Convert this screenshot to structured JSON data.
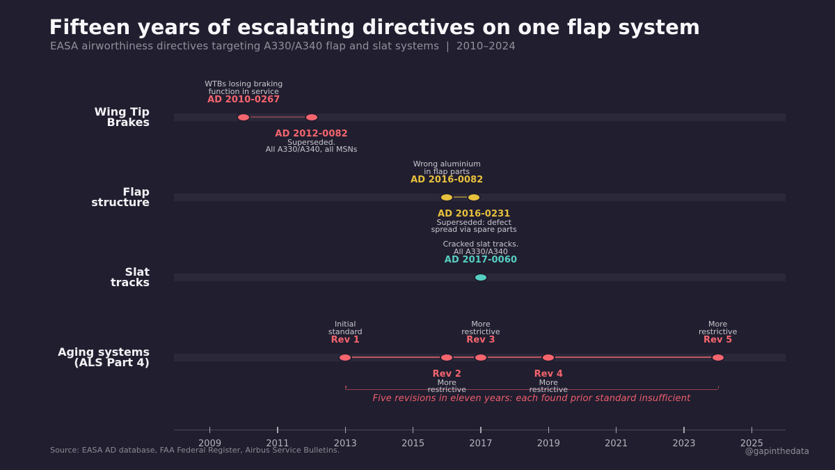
{
  "header": {
    "title": "Fifteen years of escalating directives on one flap system",
    "subtitle": "EASA airworthiness directives targeting A330/A340 flap and slat systems  |  2010–2024"
  },
  "footer": {
    "source": "Source: EASA AD database, FAA Federal Register, Airbus Service Bulletins.",
    "handle": "@gapinthedata"
  },
  "colors": {
    "background": "#211e2f",
    "lane_bar": "#2b2939",
    "salmon": "#f4656e",
    "gold": "#e7c13d",
    "teal": "#56cfc2",
    "note_gray": "#c9c7cf"
  },
  "chart_data": {
    "type": "scatter",
    "title": "Fifteen years of escalating directives on one flap system",
    "subtitle": "EASA airworthiness directives targeting A330/A340 flap and slat systems  |  2010–2024",
    "xlabel": "",
    "ylabel": "",
    "xlim": [
      2007.94,
      2026.0
    ],
    "xticks": [
      2009,
      2011,
      2013,
      2015,
      2017,
      2019,
      2021,
      2023,
      2025
    ],
    "grid": false,
    "legend": false,
    "lanes": [
      {
        "name": "Wing Tip Brakes",
        "label_lines": [
          "Wing Tip",
          "Brakes"
        ],
        "color": "#f4656e",
        "events": [
          {
            "year": 2010.0,
            "annotation": {
              "side": "above",
              "notes": [
                "WTBs losing braking",
                "function in service"
              ],
              "label": "AD 2010-0267"
            }
          },
          {
            "year": 2012.0,
            "annotation": {
              "side": "below",
              "label": "AD 2012-0082",
              "notes": [
                "Superseded.",
                "All A330/A340, all MSNs"
              ]
            }
          }
        ],
        "connect": [
          [
            2010.0,
            2012.0
          ]
        ],
        "connect_opacity": 0.4
      },
      {
        "name": "Flap structure",
        "label_lines": [
          "Flap",
          "structure"
        ],
        "color": "#e7c13d",
        "events": [
          {
            "year": 2016.0,
            "annotation": {
              "side": "above",
              "notes": [
                "Wrong aluminium",
                "in flap parts"
              ],
              "label": "AD 2016-0082"
            }
          },
          {
            "year": 2016.8,
            "annotation": {
              "side": "below",
              "label": "AD 2016-0231",
              "notes": [
                "Superseded: defect",
                "spread via spare parts"
              ]
            }
          }
        ],
        "connect": [
          [
            2016.0,
            2016.8
          ]
        ],
        "connect_opacity": 0.5
      },
      {
        "name": "Slat tracks",
        "label_lines": [
          "Slat",
          "tracks"
        ],
        "color": "#56cfc2",
        "events": [
          {
            "year": 2017.0,
            "annotation": {
              "side": "above",
              "notes": [
                "Cracked slat tracks.",
                "All A330/A340"
              ],
              "label": "AD 2017-0060"
            }
          }
        ],
        "connect": [],
        "connect_opacity": 0
      },
      {
        "name": "Aging systems (ALS Part 4)",
        "label_lines": [
          "Aging systems",
          "(ALS Part 4)"
        ],
        "color": "#f4656e",
        "events": [
          {
            "year": 2013.0,
            "annotation": {
              "side": "above",
              "notes": [
                "Initial",
                "standard"
              ],
              "label": "Rev 1"
            }
          },
          {
            "year": 2016.0,
            "annotation": {
              "side": "below",
              "label": "Rev 2",
              "notes": [
                "More",
                "restrictive"
              ]
            }
          },
          {
            "year": 2017.0,
            "annotation": {
              "side": "above",
              "notes": [
                "More",
                "restrictive"
              ],
              "label": "Rev 3"
            }
          },
          {
            "year": 2019.0,
            "annotation": {
              "side": "below",
              "label": "Rev 4",
              "notes": [
                "More",
                "restrictive"
              ]
            }
          },
          {
            "year": 2024.0,
            "annotation": {
              "side": "above",
              "notes": [
                "More",
                "restrictive"
              ],
              "label": "Rev 5"
            }
          }
        ],
        "connect": [
          [
            2013.0,
            2024.0
          ]
        ],
        "connect_opacity": 0.75,
        "bracket": {
          "from": 2013.0,
          "to": 2024.0,
          "text": "Five revisions in eleven years: each found prior standard insufficient"
        }
      }
    ]
  }
}
